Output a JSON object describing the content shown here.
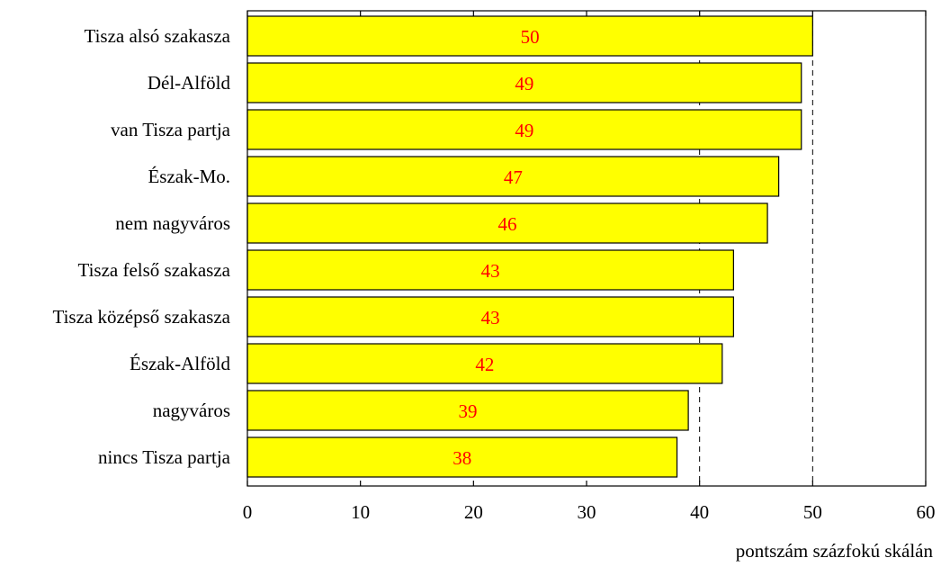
{
  "chart_data": {
    "type": "bar",
    "orientation": "horizontal",
    "categories": [
      "Tisza alsó szakasza",
      "Dél-Alföld",
      "van Tisza partja",
      "Észak-Mo.",
      "nem nagyváros",
      "Tisza felső szakasza",
      "Tisza középső szakasza",
      "Észak-Alföld",
      "nagyváros",
      "nincs Tisza partja"
    ],
    "values": [
      50,
      49,
      49,
      47,
      46,
      43,
      43,
      42,
      39,
      38
    ],
    "data_labels": [
      "50",
      "49",
      "49",
      "47",
      "46",
      "43",
      "43",
      "42",
      "39",
      "38"
    ],
    "xlabel": "pontszám százfokú skálán",
    "ylabel": "",
    "xlim": [
      0,
      60
    ],
    "xticks": [
      0,
      10,
      20,
      30,
      40,
      50,
      60
    ],
    "xtick_labels": [
      "0",
      "10",
      "20",
      "30",
      "40",
      "50",
      "60"
    ],
    "reference_lines": [
      40,
      50
    ],
    "grid": false,
    "legend": "none",
    "colors": {
      "bar_fill": "#ffff00",
      "bar_stroke": "#000000",
      "value_label": "#ff0000",
      "reference_line": "#000000"
    }
  }
}
